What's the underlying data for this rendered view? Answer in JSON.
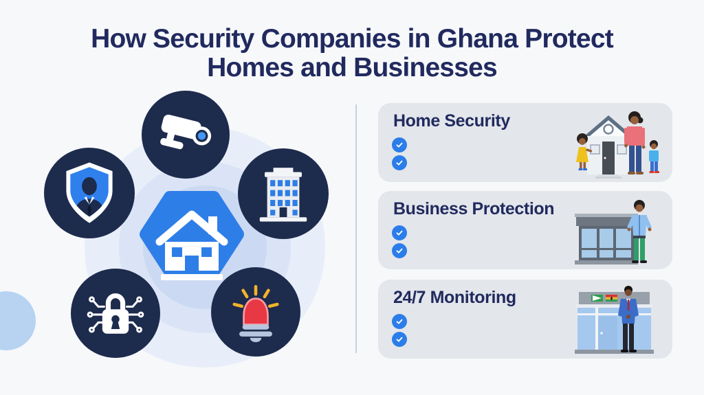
{
  "header": {
    "title_line1": "How Security Companies in Ghana Protect",
    "title_line2": "Homes and Businesses"
  },
  "diagram": {
    "center_node": {
      "icon": "house-icon",
      "shape": "hexagon"
    },
    "nodes": [
      {
        "id": "cctv-camera",
        "icon": "cctv-camera-icon"
      },
      {
        "id": "security-guard",
        "icon": "guard-shield-icon"
      },
      {
        "id": "office-building",
        "icon": "office-building-icon"
      },
      {
        "id": "cyber-lock",
        "icon": "padlock-circuit-icon"
      },
      {
        "id": "alarm-siren",
        "icon": "alarm-siren-icon"
      }
    ]
  },
  "sections": [
    {
      "title": "Home Security",
      "check_count": 2,
      "illustration": "family-in-front-of-home"
    },
    {
      "title": "Business Protection",
      "check_count": 2,
      "illustration": "guard-by-storefront"
    },
    {
      "title": "24/7 Monitoring",
      "check_count": 2,
      "illustration": "agent-at-monitoring-office"
    }
  ],
  "colors": {
    "title_text": "#212a5e",
    "node_circle": "#1d2b4d",
    "accent_blue": "#2e7ee8",
    "check_blue": "#2b7de9",
    "card_background": "#e3e6eb",
    "page_background": "#f7f8fa",
    "ring_outer": "#e8eef9",
    "ring_middle": "#dae4f6",
    "ring_inner": "#ccd9f2",
    "alarm_red": "#e73843",
    "ray_yellow": "#f2b32a"
  }
}
